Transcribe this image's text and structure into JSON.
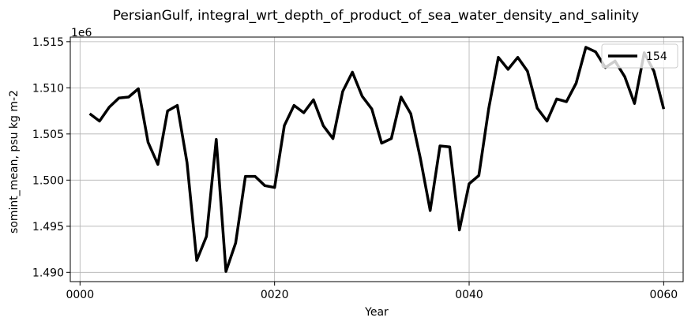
{
  "chart_data": {
    "type": "line",
    "title": "PersianGulf, integral_wrt_depth_of_product_of_sea_water_density_and_salinity",
    "xlabel": "Year",
    "ylabel": "somint_mean, psu kg m-2",
    "y_offset_label": "1e6",
    "y_scale_factor": 1000000,
    "xlim": [
      -1,
      62
    ],
    "ylim": [
      1.489,
      1.5155
    ],
    "x_ticks": [
      0,
      20,
      40,
      60
    ],
    "x_tick_labels": [
      "0000",
      "0020",
      "0040",
      "0060"
    ],
    "y_ticks": [
      1.49,
      1.495,
      1.5,
      1.505,
      1.51,
      1.515
    ],
    "y_tick_labels": [
      "1.490",
      "1.495",
      "1.500",
      "1.505",
      "1.510",
      "1.515"
    ],
    "grid": true,
    "legend_position": "top-right",
    "series": [
      {
        "name": "154",
        "color": "#000000",
        "x": [
          1,
          2,
          3,
          4,
          5,
          6,
          7,
          8,
          9,
          10,
          11,
          12,
          13,
          14,
          15,
          16,
          17,
          18,
          19,
          20,
          21,
          22,
          23,
          24,
          25,
          26,
          27,
          28,
          29,
          30,
          31,
          32,
          33,
          34,
          35,
          36,
          37,
          38,
          39,
          40,
          41,
          42,
          43,
          44,
          45,
          46,
          47,
          48,
          49,
          50,
          51,
          52,
          53,
          54,
          55,
          56,
          57,
          58,
          59,
          60
        ],
        "values": [
          1.5072,
          1.5064,
          1.5079,
          1.5089,
          1.509,
          1.5099,
          1.5041,
          1.5017,
          1.5075,
          1.5081,
          1.5019,
          1.4913,
          1.4939,
          1.5044,
          1.4901,
          1.4932,
          1.5004,
          1.5004,
          1.4994,
          1.4992,
          1.5059,
          1.5081,
          1.5073,
          1.5087,
          1.5059,
          1.5045,
          1.5096,
          1.5117,
          1.5091,
          1.5077,
          1.504,
          1.5045,
          1.509,
          1.5072,
          1.5023,
          1.4967,
          1.5037,
          1.5036,
          1.4946,
          1.4996,
          1.5005,
          1.5077,
          1.5133,
          1.512,
          1.5133,
          1.5118,
          1.5078,
          1.5064,
          1.5088,
          1.5085,
          1.5105,
          1.5144,
          1.5139,
          1.5122,
          1.5129,
          1.5112,
          1.5083,
          1.5138,
          1.5118,
          1.5077
        ]
      }
    ]
  }
}
